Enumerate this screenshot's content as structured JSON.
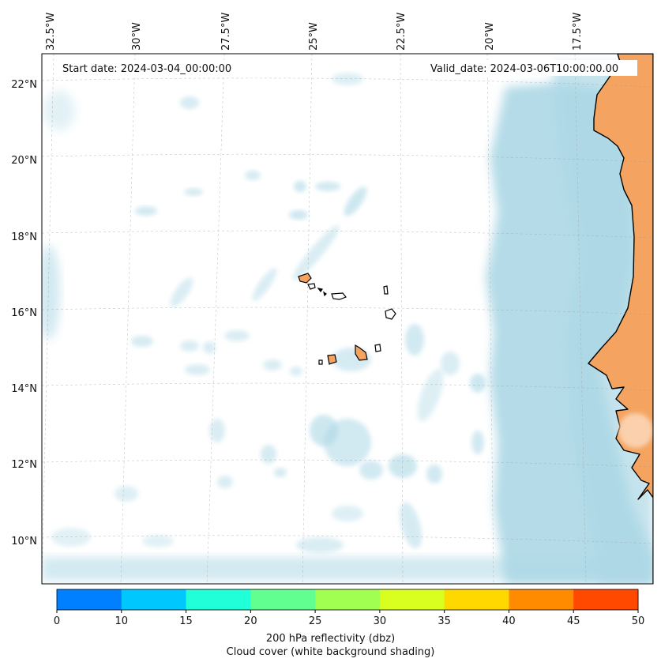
{
  "map": {
    "start_date": "Start date: 2024-03-04_00:00:00",
    "valid_date": "Valid_date: 2024-03-06T10:00:00.00",
    "lon_labels": [
      "32.5°W",
      "30°W",
      "27.5°W",
      "25°W",
      "22.5°W",
      "20°W",
      "17.5°W"
    ],
    "lat_labels": [
      "22°N",
      "20°N",
      "18°N",
      "16°N",
      "14°N",
      "12°N",
      "10°N"
    ],
    "land_color": "#f4a460",
    "cloud_color": "#add8e6",
    "grid": true
  },
  "colorbar": {
    "ticks": [
      "0",
      "10",
      "15",
      "20",
      "25",
      "30",
      "35",
      "40",
      "45",
      "50"
    ],
    "colors": [
      "#0080ff",
      "#00c8ff",
      "#20ffd8",
      "#60ff90",
      "#a0ff50",
      "#d8ff20",
      "#ffd800",
      "#ff8c00",
      "#ff4800"
    ],
    "label": "200 hPa reflectivity (dbz)",
    "sublabel": "Cloud cover (white background shading)"
  }
}
